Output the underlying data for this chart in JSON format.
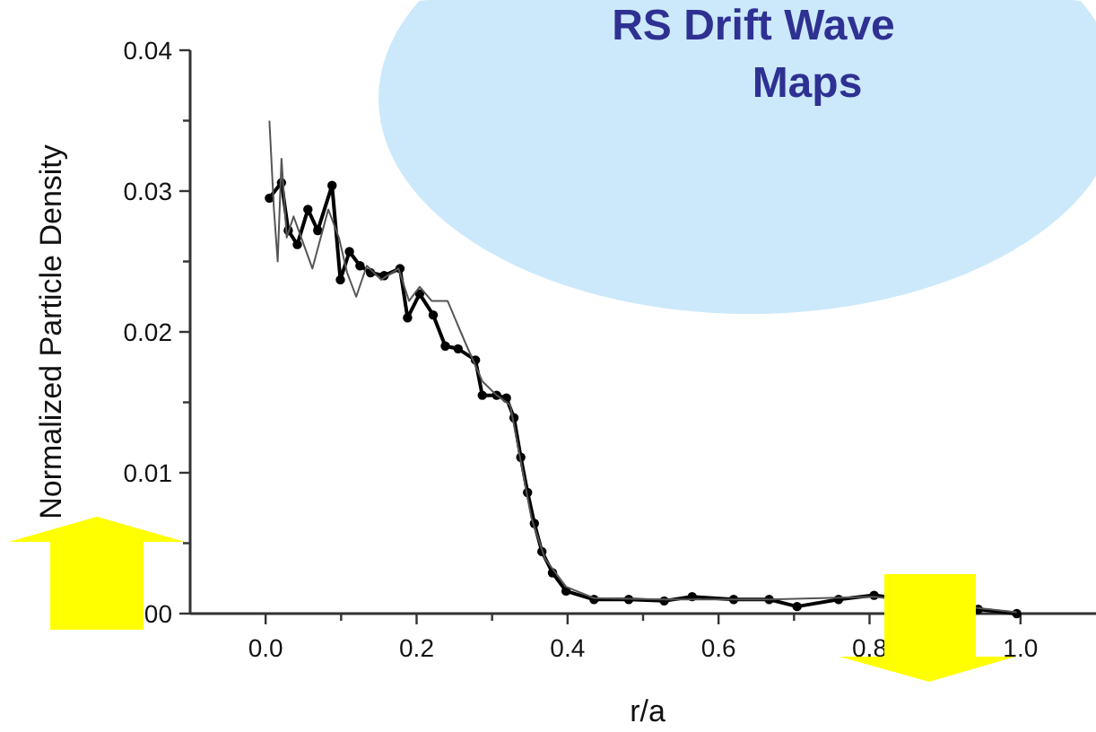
{
  "chart_data": {
    "type": "line",
    "xlabel": "r/a",
    "ylabel": "Normalized Particle Density",
    "annotations": [
      "RS Drift Wave Maps"
    ],
    "xlim": [
      -0.1,
      1.1
    ],
    "ylim": [
      0,
      0.04
    ],
    "xticks": [
      {
        "value": 0,
        "label": "0.0"
      },
      {
        "value": 0.1,
        "label": null
      },
      0.2,
      {
        "value": 0.3,
        "label": null
      },
      0.4,
      {
        "value": 0.5,
        "label": null
      },
      0.6,
      {
        "value": 0.7,
        "label": null
      },
      0.8,
      {
        "value": 0.9,
        "label": null
      },
      {
        "value": 1,
        "label": "1.0"
      }
    ],
    "yticks": [
      {
        "value": 0,
        "label": "00"
      },
      {
        "value": 0.005,
        "label": null
      },
      0.01,
      {
        "value": 0.015,
        "label": null
      },
      0.02,
      {
        "value": 0.025,
        "label": null
      },
      0.03,
      {
        "value": 0.035,
        "label": null
      },
      0.04
    ],
    "grid": false,
    "series": [
      {
        "color": "#000000",
        "marker": "circle",
        "x": [
          0.005,
          0.021,
          0.03,
          0.042,
          0.056,
          0.069,
          0.088,
          0.099,
          0.111,
          0.125,
          0.139,
          0.157,
          0.178,
          0.188,
          0.204,
          0.222,
          0.238,
          0.255,
          0.278,
          0.287,
          0.306,
          0.319,
          0.329,
          0.338,
          0.347,
          0.356,
          0.366,
          0.38,
          0.398,
          0.435,
          0.481,
          0.528,
          0.565,
          0.62,
          0.667,
          0.704,
          0.759,
          0.806,
          0.944,
          0.995
        ],
        "values": [
          0.0295,
          0.0306,
          0.0272,
          0.0262,
          0.0287,
          0.0272,
          0.0304,
          0.0237,
          0.0257,
          0.0247,
          0.0242,
          0.024,
          0.0245,
          0.021,
          0.0227,
          0.0212,
          0.019,
          0.0188,
          0.018,
          0.0155,
          0.0155,
          0.0153,
          0.0139,
          0.0111,
          0.0086,
          0.0064,
          0.0044,
          0.0029,
          0.0016,
          0.001,
          0.001,
          0.0009,
          0.0012,
          0.001,
          0.001,
          0.0005,
          0.001,
          0.0013,
          0.0003,
          0
        ]
      },
      {
        "color": "#555555",
        "marker": "none",
        "x": [
          0.005,
          0.011,
          0.016,
          0.021,
          0.028,
          0.037,
          0.062,
          0.083,
          0.097,
          0.108,
          0.12,
          0.134,
          0.153,
          0.176,
          0.19,
          0.204,
          0.22,
          0.241,
          0.264,
          0.287,
          0.306,
          0.324,
          0.338,
          0.352,
          0.37,
          0.398,
          0.435,
          0.528,
          0.667,
          0.806,
          0.995
        ],
        "values": [
          0.035,
          0.0287,
          0.025,
          0.0323,
          0.0267,
          0.0282,
          0.0245,
          0.0287,
          0.0267,
          0.0242,
          0.0225,
          0.0247,
          0.0237,
          0.0245,
          0.0222,
          0.0232,
          0.0222,
          0.0222,
          0.0193,
          0.0165,
          0.0155,
          0.0148,
          0.0108,
          0.0068,
          0.0039,
          0.0019,
          0.0011,
          0.001,
          0.001,
          0.0012,
          0.0001
        ]
      }
    ]
  }
}
